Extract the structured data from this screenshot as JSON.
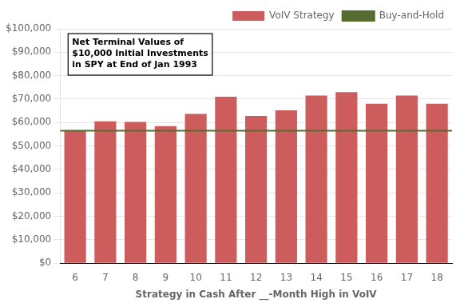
{
  "chart_data": {
    "type": "bar",
    "categories": [
      6,
      7,
      8,
      9,
      10,
      11,
      12,
      13,
      14,
      15,
      16,
      17,
      18
    ],
    "series": [
      {
        "name": "VoIV Strategy",
        "type": "bar",
        "color": "#CD5C5C",
        "values": [
          56500,
          60500,
          60300,
          58500,
          63700,
          71000,
          62800,
          65200,
          71500,
          73000,
          68000,
          71500,
          68000
        ]
      },
      {
        "name": "Buy-and-Hold",
        "type": "hline",
        "color": "#556B2F",
        "value": 56500
      }
    ],
    "xlabel": "Strategy in Cash After __-Month High in VoIV",
    "annotation": "Net Terminal Values of\n$10,000 Initial Investments\nin SPY at End of Jan 1993",
    "ylim": [
      0,
      100000
    ],
    "yticks": [
      {
        "value": 0,
        "label": "$0"
      },
      {
        "value": 10000,
        "label": "$10,000"
      },
      {
        "value": 20000,
        "label": "$20,000"
      },
      {
        "value": 30000,
        "label": "$30,000"
      },
      {
        "value": 40000,
        "label": "$40,000"
      },
      {
        "value": 50000,
        "label": "$50,000"
      },
      {
        "value": 60000,
        "label": "$60,000"
      },
      {
        "value": 70000,
        "label": "$70,000"
      },
      {
        "value": 80000,
        "label": "$80,000"
      },
      {
        "value": 90000,
        "label": "$90,000"
      },
      {
        "value": 100000,
        "label": "$100,000"
      }
    ],
    "grid": true,
    "legend": "upper right"
  }
}
